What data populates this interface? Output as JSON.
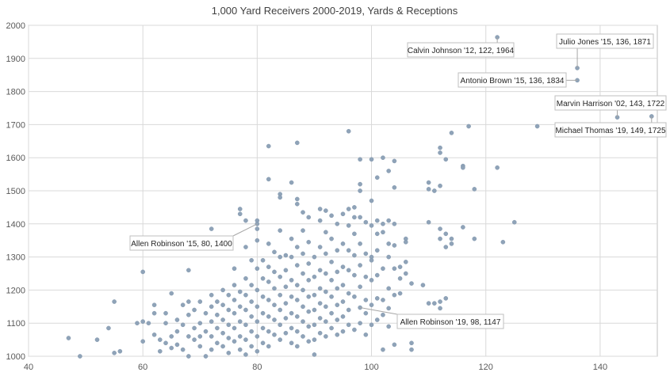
{
  "chart_data": {
    "type": "scatter",
    "title": "1,000 Yard Receivers 2000-2019, Yards & Receptions",
    "xlabel": "",
    "ylabel": "",
    "xlim": [
      40,
      150
    ],
    "ylim": [
      1000,
      2000
    ],
    "xticks": [
      40,
      60,
      80,
      100,
      120,
      140
    ],
    "yticks": [
      1000,
      1100,
      1200,
      1300,
      1400,
      1500,
      1600,
      1700,
      1800,
      1900,
      2000
    ],
    "grid": true,
    "legend": "none",
    "point_color": "#8fa3b8",
    "annotations": [
      {
        "label": "Calvin Johnson '12, 122, 1964",
        "x": 122,
        "y": 1964
      },
      {
        "label": "Julio Jones '15, 136, 1871",
        "x": 136,
        "y": 1871
      },
      {
        "label": "Antonio Brown '15, 136, 1834",
        "x": 136,
        "y": 1834
      },
      {
        "label": "Marvin Harrison '02, 143, 1722",
        "x": 143,
        "y": 1722
      },
      {
        "label": "Michael Thomas '19, 149, 1725",
        "x": 149,
        "y": 1725
      },
      {
        "label": "Allen Robinson '15, 80, 1400",
        "x": 80,
        "y": 1400
      },
      {
        "label": "Allen Robinson '19, 98, 1147",
        "x": 98,
        "y": 1147
      }
    ],
    "points": [
      [
        47,
        1055
      ],
      [
        49,
        1000
      ],
      [
        52,
        1050
      ],
      [
        54,
        1085
      ],
      [
        55,
        1010
      ],
      [
        55,
        1165
      ],
      [
        56,
        1015
      ],
      [
        59,
        1100
      ],
      [
        60,
        1105
      ],
      [
        60,
        1255
      ],
      [
        60,
        1045
      ],
      [
        61,
        1100
      ],
      [
        62,
        1130
      ],
      [
        62,
        1155
      ],
      [
        62,
        1065
      ],
      [
        63,
        1015
      ],
      [
        63,
        1050
      ],
      [
        64,
        1100
      ],
      [
        64,
        1130
      ],
      [
        64,
        1040
      ],
      [
        65,
        1190
      ],
      [
        65,
        1060
      ],
      [
        65,
        1025
      ],
      [
        66,
        1110
      ],
      [
        66,
        1075
      ],
      [
        66,
        1035
      ],
      [
        67,
        1155
      ],
      [
        67,
        1095
      ],
      [
        67,
        1020
      ],
      [
        68,
        1260
      ],
      [
        68,
        1165
      ],
      [
        68,
        1125
      ],
      [
        68,
        1060
      ],
      [
        68,
        1000
      ],
      [
        69,
        1140
      ],
      [
        69,
        1085
      ],
      [
        69,
        1050
      ],
      [
        70,
        1165
      ],
      [
        70,
        1100
      ],
      [
        70,
        1060
      ],
      [
        70,
        1030
      ],
      [
        71,
        1130
      ],
      [
        71,
        1075
      ],
      [
        71,
        1000
      ],
      [
        72,
        1385
      ],
      [
        72,
        1185
      ],
      [
        72,
        1150
      ],
      [
        72,
        1105
      ],
      [
        72,
        1060
      ],
      [
        72,
        1020
      ],
      [
        73,
        1165
      ],
      [
        73,
        1125
      ],
      [
        73,
        1085
      ],
      [
        73,
        1040
      ],
      [
        74,
        1200
      ],
      [
        74,
        1155
      ],
      [
        74,
        1110
      ],
      [
        74,
        1070
      ],
      [
        74,
        1030
      ],
      [
        75,
        1185
      ],
      [
        75,
        1140
      ],
      [
        75,
        1095
      ],
      [
        75,
        1055
      ],
      [
        75,
        1010
      ],
      [
        76,
        1265
      ],
      [
        76,
        1215
      ],
      [
        76,
        1170
      ],
      [
        76,
        1130
      ],
      [
        76,
        1085
      ],
      [
        76,
        1045
      ],
      [
        77,
        1445
      ],
      [
        77,
        1430
      ],
      [
        77,
        1195
      ],
      [
        77,
        1150
      ],
      [
        77,
        1105
      ],
      [
        77,
        1060
      ],
      [
        77,
        1020
      ],
      [
        78,
        1410
      ],
      [
        78,
        1330
      ],
      [
        78,
        1235
      ],
      [
        78,
        1185
      ],
      [
        78,
        1140
      ],
      [
        78,
        1095
      ],
      [
        78,
        1050
      ],
      [
        78,
        1005
      ],
      [
        79,
        1290
      ],
      [
        79,
        1215
      ],
      [
        79,
        1165
      ],
      [
        79,
        1120
      ],
      [
        79,
        1075
      ],
      [
        79,
        1030
      ],
      [
        80,
        1410
      ],
      [
        80,
        1385
      ],
      [
        80,
        1350
      ],
      [
        80,
        1265
      ],
      [
        80,
        1200
      ],
      [
        80,
        1150
      ],
      [
        80,
        1105
      ],
      [
        80,
        1060
      ],
      [
        80,
        1015
      ],
      [
        81,
        1290
      ],
      [
        81,
        1235
      ],
      [
        81,
        1180
      ],
      [
        81,
        1130
      ],
      [
        81,
        1085
      ],
      [
        81,
        1040
      ],
      [
        82,
        1635
      ],
      [
        82,
        1535
      ],
      [
        82,
        1340
      ],
      [
        82,
        1270
      ],
      [
        82,
        1225
      ],
      [
        82,
        1170
      ],
      [
        82,
        1120
      ],
      [
        82,
        1075
      ],
      [
        82,
        1030
      ],
      [
        83,
        1315
      ],
      [
        83,
        1255
      ],
      [
        83,
        1205
      ],
      [
        83,
        1155
      ],
      [
        83,
        1110
      ],
      [
        83,
        1065
      ],
      [
        84,
        1490
      ],
      [
        84,
        1480
      ],
      [
        84,
        1380
      ],
      [
        84,
        1300
      ],
      [
        84,
        1240
      ],
      [
        84,
        1185
      ],
      [
        84,
        1140
      ],
      [
        84,
        1095
      ],
      [
        84,
        1050
      ],
      [
        85,
        1305
      ],
      [
        85,
        1260
      ],
      [
        85,
        1210
      ],
      [
        85,
        1160
      ],
      [
        85,
        1115
      ],
      [
        85,
        1070
      ],
      [
        86,
        1525
      ],
      [
        86,
        1355
      ],
      [
        86,
        1300
      ],
      [
        86,
        1230
      ],
      [
        86,
        1180
      ],
      [
        86,
        1130
      ],
      [
        86,
        1085
      ],
      [
        86,
        1040
      ],
      [
        87,
        1645
      ],
      [
        87,
        1475
      ],
      [
        87,
        1460
      ],
      [
        87,
        1330
      ],
      [
        87,
        1275
      ],
      [
        87,
        1215
      ],
      [
        87,
        1170
      ],
      [
        87,
        1120
      ],
      [
        87,
        1075
      ],
      [
        87,
        1030
      ],
      [
        88,
        1435
      ],
      [
        88,
        1380
      ],
      [
        88,
        1310
      ],
      [
        88,
        1250
      ],
      [
        88,
        1200
      ],
      [
        88,
        1150
      ],
      [
        88,
        1105
      ],
      [
        88,
        1060
      ],
      [
        89,
        1420
      ],
      [
        89,
        1345
      ],
      [
        89,
        1280
      ],
      [
        89,
        1230
      ],
      [
        89,
        1180
      ],
      [
        89,
        1135
      ],
      [
        89,
        1090
      ],
      [
        89,
        1045
      ],
      [
        90,
        1300
      ],
      [
        90,
        1240
      ],
      [
        90,
        1185
      ],
      [
        90,
        1140
      ],
      [
        90,
        1095
      ],
      [
        90,
        1050
      ],
      [
        90,
        1005
      ],
      [
        91,
        1445
      ],
      [
        91,
        1410
      ],
      [
        91,
        1330
      ],
      [
        91,
        1260
      ],
      [
        91,
        1205
      ],
      [
        91,
        1160
      ],
      [
        91,
        1115
      ],
      [
        91,
        1070
      ],
      [
        92,
        1440
      ],
      [
        92,
        1375
      ],
      [
        92,
        1310
      ],
      [
        92,
        1250
      ],
      [
        92,
        1195
      ],
      [
        92,
        1150
      ],
      [
        92,
        1105
      ],
      [
        92,
        1060
      ],
      [
        93,
        1425
      ],
      [
        93,
        1355
      ],
      [
        93,
        1285
      ],
      [
        93,
        1230
      ],
      [
        93,
        1180
      ],
      [
        93,
        1130
      ],
      [
        93,
        1085
      ],
      [
        94,
        1400
      ],
      [
        94,
        1320
      ],
      [
        94,
        1255
      ],
      [
        94,
        1205
      ],
      [
        94,
        1155
      ],
      [
        94,
        1110
      ],
      [
        94,
        1065
      ],
      [
        95,
        1430
      ],
      [
        95,
        1340
      ],
      [
        95,
        1270
      ],
      [
        95,
        1215
      ],
      [
        95,
        1165
      ],
      [
        95,
        1120
      ],
      [
        95,
        1075
      ],
      [
        96,
        1680
      ],
      [
        96,
        1445
      ],
      [
        96,
        1395
      ],
      [
        96,
        1320
      ],
      [
        96,
        1260
      ],
      [
        96,
        1190
      ],
      [
        96,
        1140
      ],
      [
        96,
        1095
      ],
      [
        97,
        1450
      ],
      [
        97,
        1420
      ],
      [
        97,
        1370
      ],
      [
        97,
        1305
      ],
      [
        97,
        1245
      ],
      [
        97,
        1180
      ],
      [
        97,
        1080
      ],
      [
        98,
        1595
      ],
      [
        98,
        1520
      ],
      [
        98,
        1500
      ],
      [
        98,
        1420
      ],
      [
        98,
        1340
      ],
      [
        98,
        1275
      ],
      [
        98,
        1210
      ],
      [
        98,
        1100
      ],
      [
        99,
        1405
      ],
      [
        99,
        1310
      ],
      [
        99,
        1240
      ],
      [
        99,
        1170
      ],
      [
        99,
        1130
      ],
      [
        99,
        1065
      ],
      [
        100,
        1595
      ],
      [
        100,
        1470
      ],
      [
        100,
        1395
      ],
      [
        100,
        1300
      ],
      [
        100,
        1290
      ],
      [
        100,
        1230
      ],
      [
        100,
        1155
      ],
      [
        100,
        1095
      ],
      [
        101,
        1540
      ],
      [
        101,
        1410
      ],
      [
        101,
        1370
      ],
      [
        101,
        1320
      ],
      [
        101,
        1245
      ],
      [
        101,
        1175
      ],
      [
        101,
        1110
      ],
      [
        102,
        1600
      ],
      [
        102,
        1400
      ],
      [
        102,
        1375
      ],
      [
        102,
        1265
      ],
      [
        102,
        1170
      ],
      [
        102,
        1125
      ],
      [
        102,
        1020
      ],
      [
        103,
        1560
      ],
      [
        103,
        1410
      ],
      [
        103,
        1340
      ],
      [
        103,
        1300
      ],
      [
        103,
        1205
      ],
      [
        103,
        1145
      ],
      [
        103,
        1090
      ],
      [
        104,
        1590
      ],
      [
        104,
        1510
      ],
      [
        104,
        1400
      ],
      [
        104,
        1335
      ],
      [
        104,
        1265
      ],
      [
        104,
        1185
      ],
      [
        104,
        1035
      ],
      [
        105,
        1270
      ],
      [
        105,
        1235
      ],
      [
        105,
        1190
      ],
      [
        105,
        1110
      ],
      [
        106,
        1355
      ],
      [
        106,
        1345
      ],
      [
        106,
        1285
      ],
      [
        106,
        1250
      ],
      [
        107,
        1220
      ],
      [
        107,
        1040
      ],
      [
        107,
        1020
      ],
      [
        109,
        1215
      ],
      [
        110,
        1525
      ],
      [
        110,
        1505
      ],
      [
        110,
        1405
      ],
      [
        110,
        1160
      ],
      [
        111,
        1500
      ],
      [
        111,
        1160
      ],
      [
        112,
        1630
      ],
      [
        112,
        1615
      ],
      [
        112,
        1515
      ],
      [
        112,
        1385
      ],
      [
        112,
        1355
      ],
      [
        112,
        1165
      ],
      [
        112,
        1145
      ],
      [
        113,
        1595
      ],
      [
        113,
        1370
      ],
      [
        113,
        1330
      ],
      [
        113,
        1175
      ],
      [
        114,
        1675
      ],
      [
        114,
        1355
      ],
      [
        114,
        1340
      ],
      [
        116,
        1575
      ],
      [
        116,
        1570
      ],
      [
        116,
        1390
      ],
      [
        117,
        1695
      ],
      [
        118,
        1505
      ],
      [
        118,
        1355
      ],
      [
        122,
        1570
      ],
      [
        123,
        1345
      ],
      [
        125,
        1405
      ],
      [
        129,
        1695
      ],
      [
        122,
        1964
      ],
      [
        136,
        1871
      ],
      [
        136,
        1834
      ],
      [
        143,
        1722
      ],
      [
        149,
        1725
      ],
      [
        80,
        1400
      ],
      [
        98,
        1147
      ]
    ]
  }
}
